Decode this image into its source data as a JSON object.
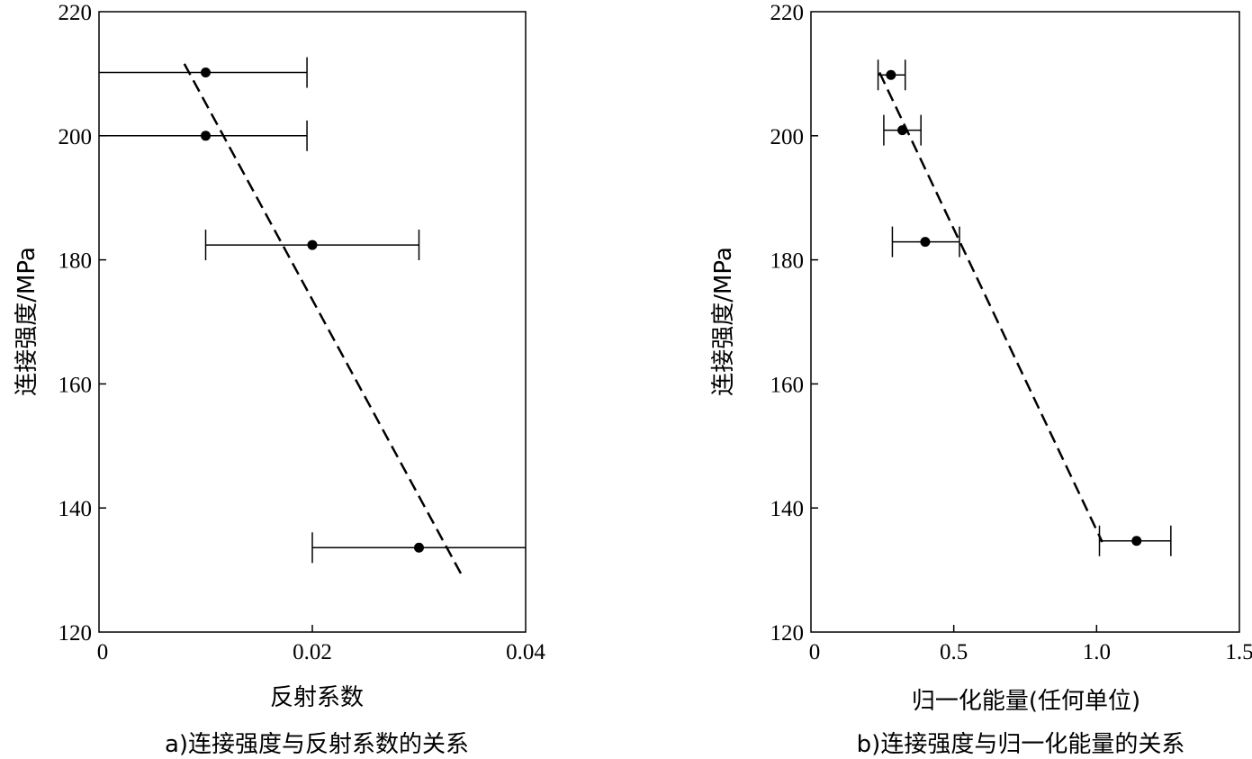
{
  "chart_data": [
    {
      "type": "scatter",
      "caption": "a)连接强度与反射系数的关系",
      "xlabel": "反射系数",
      "ylabel": "连接强度/MPa",
      "xlim": [
        0,
        0.04
      ],
      "ylim": [
        120,
        220
      ],
      "xticks": [
        0,
        0.02,
        0.04
      ],
      "xtick_labels": [
        "0",
        "0.02",
        "0.04"
      ],
      "yticks": [
        120,
        140,
        160,
        180,
        200,
        220
      ],
      "ytick_labels": [
        "120",
        "140",
        "160",
        "180",
        "200",
        "220"
      ],
      "grid": false,
      "points": [
        {
          "x": 0.01,
          "y": 210.2,
          "x_err_low": 0.0,
          "x_err_high": 0.0195
        },
        {
          "x": 0.01,
          "y": 200.0,
          "x_err_low": 0.0,
          "x_err_high": 0.0195
        },
        {
          "x": 0.02,
          "y": 182.4,
          "x_err_low": 0.01,
          "x_err_high": 0.03
        },
        {
          "x": 0.03,
          "y": 133.6,
          "x_err_low": 0.02,
          "x_err_high": 0.04
        }
      ],
      "fit_line": {
        "x": [
          0.008,
          0.034
        ],
        "y": [
          211.6,
          129.2
        ],
        "style": "dashed"
      }
    },
    {
      "type": "scatter",
      "caption": "b)连接强度与归一化能量的关系",
      "xlabel": "归一化能量(任何单位)",
      "ylabel": "连接强度/MPa",
      "xlim": [
        0,
        1.5
      ],
      "ylim": [
        120,
        220
      ],
      "xticks": [
        0,
        0.5,
        1.0,
        1.5
      ],
      "xtick_labels": [
        "0",
        "0.5",
        "1.0",
        "1.5"
      ],
      "yticks": [
        120,
        140,
        160,
        180,
        200,
        220
      ],
      "ytick_labels": [
        "120",
        "140",
        "160",
        "180",
        "200",
        "220"
      ],
      "grid": false,
      "points": [
        {
          "x": 0.28,
          "y": 209.8,
          "x_err_low": 0.235,
          "x_err_high": 0.33
        },
        {
          "x": 0.32,
          "y": 200.9,
          "x_err_low": 0.255,
          "x_err_high": 0.385
        },
        {
          "x": 0.4,
          "y": 182.9,
          "x_err_low": 0.285,
          "x_err_high": 0.52
        },
        {
          "x": 1.14,
          "y": 134.7,
          "x_err_low": 1.01,
          "x_err_high": 1.26
        }
      ],
      "fit_line": {
        "x": [
          0.24,
          1.02
        ],
        "y": [
          210.2,
          134.5
        ],
        "style": "dashed"
      }
    }
  ]
}
